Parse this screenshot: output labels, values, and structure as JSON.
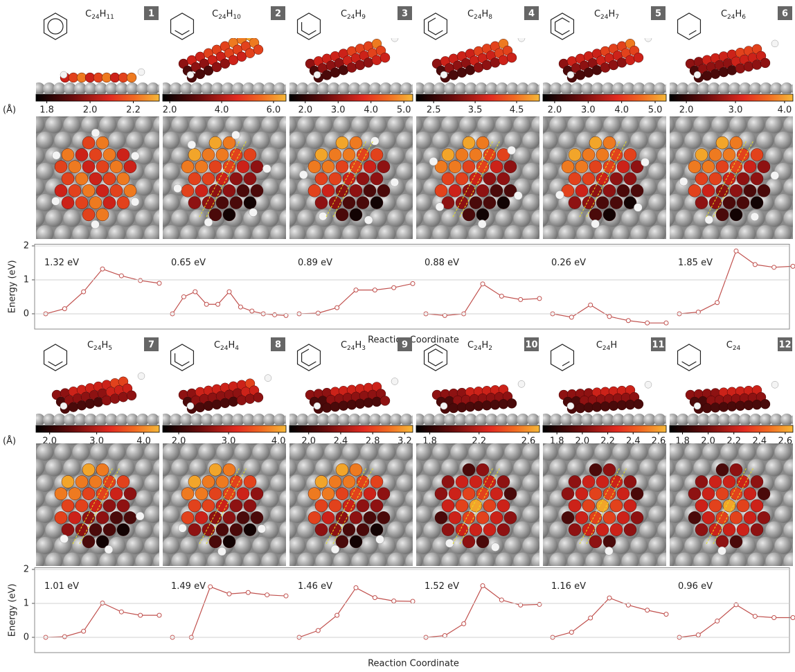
{
  "chart_data": [
    {
      "type": "line",
      "colorbar_unit": "(Å)",
      "ylabel": "Energy (eV)",
      "xlabel": "Reaction Coordinate",
      "ylim": [
        -0.45,
        2.05
      ],
      "yticks": [
        0,
        1,
        2
      ],
      "grid": true,
      "color": "#c0504d",
      "series": [
        {
          "number": 1,
          "formula": {
            "c": "C",
            "c_sub": "24",
            "h": "H",
            "h_sub": "11"
          },
          "barrier": "1.32 eV",
          "colorbar": {
            "lim": [
              1.75,
              2.32
            ],
            "ticks": [
              1.8,
              {
                "value": 2,
                "label": "2.0"
              },
              2.2
            ]
          },
          "values": [
            0,
            0.15,
            0.65,
            1.32,
            1.12,
            0.98,
            0.9
          ]
        },
        {
          "number": 2,
          "formula": {
            "c": "C",
            "c_sub": "24",
            "h": "H",
            "h_sub": "10"
          },
          "barrier": "0.65 eV",
          "colorbar": {
            "lim": [
              1.73,
              6.48
            ],
            "ticks": [
              {
                "value": 2,
                "label": "2.0"
              },
              {
                "value": 4,
                "label": "4.0"
              },
              {
                "value": 6,
                "label": "6.0"
              }
            ]
          },
          "values": [
            0,
            0.5,
            0.65,
            0.28,
            0.28,
            0.65,
            0.2,
            0.08,
            0,
            -0.03,
            -0.05
          ]
        },
        {
          "number": 3,
          "formula": {
            "c": "C",
            "c_sub": "24",
            "h": "H",
            "h_sub": "9"
          },
          "barrier": "0.89 eV",
          "colorbar": {
            "lim": [
              1.52,
              5.27
            ],
            "ticks": [
              {
                "value": 2,
                "label": "2.0"
              },
              {
                "value": 3,
                "label": "3.0"
              },
              {
                "value": 4,
                "label": "4.0"
              },
              {
                "value": 5,
                "label": "5.0"
              }
            ]
          },
          "values": [
            0,
            0.02,
            0.18,
            0.7,
            0.7,
            0.77,
            0.89
          ]
        },
        {
          "number": 4,
          "formula": {
            "c": "C",
            "c_sub": "24",
            "h": "H",
            "h_sub": "8"
          },
          "barrier": "0.88 eV",
          "colorbar": {
            "lim": [
              2.08,
              5.05
            ],
            "ticks": [
              2.5,
              3.5,
              4.5
            ]
          },
          "values": [
            0,
            -0.05,
            0,
            0.88,
            0.52,
            0.42,
            0.45
          ]
        },
        {
          "number": 5,
          "formula": {
            "c": "C",
            "c_sub": "24",
            "h": "H",
            "h_sub": "7"
          },
          "barrier": "0.26 eV",
          "colorbar": {
            "lim": [
              1.65,
              5.33
            ],
            "ticks": [
              {
                "value": 2,
                "label": "2.0"
              },
              {
                "value": 3,
                "label": "3.0"
              },
              {
                "value": 4,
                "label": "4.0"
              },
              {
                "value": 5,
                "label": "5.0"
              }
            ]
          },
          "values": [
            0,
            -0.1,
            0.26,
            -0.08,
            -0.2,
            -0.27,
            -0.27
          ]
        },
        {
          "number": 6,
          "formula": {
            "c": "C",
            "c_sub": "24",
            "h": "H",
            "h_sub": "6"
          },
          "barrier": "1.85 eV",
          "colorbar": {
            "lim": [
              1.66,
              4.17
            ],
            "ticks": [
              {
                "value": 2,
                "label": "2.0"
              },
              {
                "value": 3,
                "label": "3.0"
              },
              {
                "value": 4,
                "label": "4.0"
              }
            ]
          },
          "values": [
            0,
            0.05,
            0.33,
            1.85,
            1.45,
            1.37,
            1.4
          ]
        }
      ]
    },
    {
      "type": "line",
      "colorbar_unit": "(Å)",
      "ylabel": "Energy (eV)",
      "xlabel": "Reaction Coordinate",
      "ylim": [
        -0.45,
        2.05
      ],
      "yticks": [
        0,
        1,
        2
      ],
      "grid": true,
      "color": "#c0504d",
      "series": [
        {
          "number": 7,
          "formula": {
            "c": "C",
            "c_sub": "24",
            "h": "H",
            "h_sub": "5"
          },
          "barrier": "1.01 eV",
          "colorbar": {
            "lim": [
              1.71,
              4.33
            ],
            "ticks": [
              {
                "value": 2,
                "label": "2.0"
              },
              {
                "value": 3,
                "label": "3.0"
              },
              {
                "value": 4,
                "label": "4.0"
              }
            ]
          },
          "values": [
            0,
            0.02,
            0.18,
            1.01,
            0.75,
            0.65,
            0.65
          ]
        },
        {
          "number": 8,
          "formula": {
            "c": "C",
            "c_sub": "24",
            "h": "H",
            "h_sub": "4"
          },
          "barrier": "1.49 eV",
          "colorbar": {
            "lim": [
              1.68,
              4.15
            ],
            "ticks": [
              {
                "value": 2,
                "label": "2.0"
              },
              {
                "value": 3,
                "label": "3.0"
              },
              {
                "value": 4,
                "label": "4.0"
              }
            ]
          },
          "values": [
            0,
            0,
            1.49,
            1.28,
            1.32,
            1.25,
            1.22
          ]
        },
        {
          "number": 9,
          "formula": {
            "c": "C",
            "c_sub": "24",
            "h": "H",
            "h_sub": "3"
          },
          "barrier": "1.46 eV",
          "colorbar": {
            "lim": [
              1.76,
              3.3
            ],
            "ticks": [
              {
                "value": 2,
                "label": "2.0"
              },
              2.4,
              2.8,
              3.2
            ]
          },
          "values": [
            0,
            0.2,
            0.65,
            1.46,
            1.17,
            1.07,
            1.06
          ]
        },
        {
          "number": 10,
          "formula": {
            "c": "C",
            "c_sub": "24",
            "h": "H",
            "h_sub": "2"
          },
          "barrier": "1.52 eV",
          "colorbar": {
            "lim": [
              1.69,
              2.69
            ],
            "ticks": [
              1.8,
              2.2,
              2.6
            ]
          },
          "values": [
            0,
            0.05,
            0.4,
            1.52,
            1.1,
            0.95,
            0.97
          ]
        },
        {
          "number": 11,
          "formula": {
            "c": "C",
            "c_sub": "24",
            "h": "H"
          },
          "barrier": "1.16 eV",
          "colorbar": {
            "lim": [
              1.69,
              2.66
            ],
            "ticks": [
              1.8,
              {
                "value": 2,
                "label": "2.0"
              },
              2.2,
              2.4,
              2.6
            ]
          },
          "values": [
            0,
            0.15,
            0.57,
            1.16,
            0.95,
            0.8,
            0.68
          ]
        },
        {
          "number": 12,
          "formula": {
            "c": "C",
            "c_sub": "24"
          },
          "barrier": "0.96 eV",
          "colorbar": {
            "lim": [
              1.7,
              2.66
            ],
            "ticks": [
              1.8,
              {
                "value": 2,
                "label": "2.0"
              },
              2.2,
              2.4,
              2.6
            ]
          },
          "values": [
            0,
            0.07,
            0.48,
            0.96,
            0.62,
            0.58,
            0.58
          ]
        }
      ]
    }
  ]
}
